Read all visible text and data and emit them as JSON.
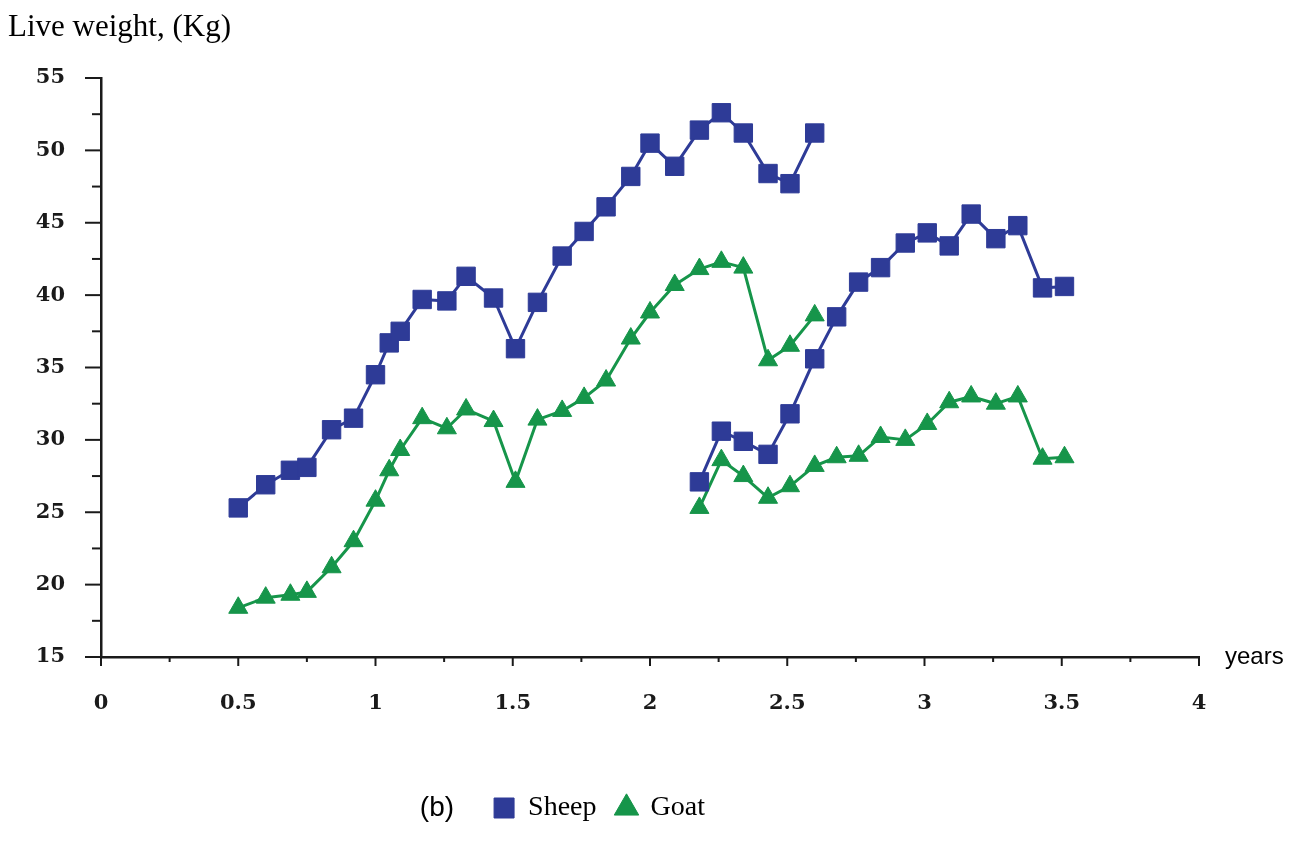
{
  "chart_data": {
    "type": "line",
    "xlabel": "years",
    "ylabel": "Live weight, (Kg)",
    "annotations": [
      "(b)"
    ],
    "xlim": [
      0,
      4
    ],
    "xticks": [
      0,
      {
        "value": 0.25,
        "label": null
      },
      0.5,
      {
        "value": 0.75,
        "label": null
      },
      1,
      {
        "value": 1.25,
        "label": null
      },
      1.5,
      {
        "value": 1.75,
        "label": null
      },
      2,
      {
        "value": 2.25,
        "label": null
      },
      2.5,
      {
        "value": 2.75,
        "label": null
      },
      3,
      {
        "value": 3.25,
        "label": null
      },
      3.5,
      {
        "value": 3.75,
        "label": null
      },
      4
    ],
    "ylim": [
      15,
      55
    ],
    "yticks": [
      15,
      {
        "value": 17.5,
        "label": null
      },
      20,
      {
        "value": 22.5,
        "label": null
      },
      25,
      {
        "value": 27.5,
        "label": null
      },
      30,
      {
        "value": 32.5,
        "label": null
      },
      35,
      {
        "value": 37.5,
        "label": null
      },
      40,
      {
        "value": 42.5,
        "label": null
      },
      45,
      {
        "value": 47.5,
        "label": null
      },
      50,
      {
        "value": 52.5,
        "label": null
      },
      55
    ],
    "legend": "bottom",
    "series": [
      {
        "name": "Sheep",
        "color": "#2e3b97",
        "marker": "square",
        "x": [
          0.5,
          0.6,
          0.69,
          0.75,
          0.84,
          0.92,
          1.0,
          1.05,
          1.09,
          1.17,
          1.26,
          1.33,
          1.43,
          1.51,
          1.59,
          1.68,
          1.76,
          1.84,
          1.93,
          2.0,
          2.09,
          2.18,
          2.26,
          2.34,
          2.43,
          2.51,
          2.6
        ],
        "values": [
          25.3,
          26.9,
          27.9,
          28.1,
          30.7,
          31.5,
          34.5,
          36.7,
          37.5,
          39.7,
          39.6,
          41.3,
          39.8,
          36.3,
          39.5,
          42.7,
          44.4,
          46.1,
          48.2,
          50.5,
          48.9,
          51.4,
          52.6,
          51.2,
          48.4,
          47.7,
          51.2
        ]
      },
      {
        "name": "Goat",
        "color": "#16954a",
        "marker": "triangle",
        "x": [
          0.5,
          0.6,
          0.69,
          0.75,
          0.84,
          0.92,
          1.0,
          1.05,
          1.09,
          1.17,
          1.26,
          1.33,
          1.43,
          1.51,
          1.59,
          1.68,
          1.76,
          1.84,
          1.93,
          2.0,
          2.09,
          2.18,
          2.26,
          2.34,
          2.43,
          2.51,
          2.6
        ],
        "values": [
          18.4,
          19.1,
          19.3,
          19.5,
          21.2,
          23.0,
          25.8,
          27.9,
          29.3,
          31.5,
          30.8,
          32.1,
          31.3,
          27.1,
          31.4,
          32.0,
          32.9,
          34.1,
          37.0,
          38.8,
          40.7,
          41.8,
          42.3,
          41.9,
          35.5,
          36.5,
          38.6
        ]
      },
      {
        "color": "#2e3b97",
        "marker": "square",
        "x": [
          2.18,
          2.26,
          2.34,
          2.43,
          2.51,
          2.6,
          2.68,
          2.76,
          2.84,
          2.93,
          3.01,
          3.09,
          3.17,
          3.26,
          3.34,
          3.43,
          3.51
        ],
        "values": [
          27.1,
          30.6,
          29.9,
          29.0,
          31.8,
          35.6,
          38.5,
          40.9,
          41.9,
          43.6,
          44.3,
          43.4,
          45.6,
          43.9,
          44.8,
          40.5,
          40.6
        ]
      },
      {
        "color": "#16954a",
        "marker": "triangle",
        "x": [
          2.18,
          2.26,
          2.34,
          2.43,
          2.51,
          2.6,
          2.68,
          2.76,
          2.84,
          2.93,
          3.01,
          3.09,
          3.17,
          3.26,
          3.34,
          3.43,
          3.51
        ],
        "values": [
          25.3,
          28.6,
          27.5,
          26.0,
          26.8,
          28.2,
          28.8,
          28.9,
          30.2,
          30.0,
          31.1,
          32.6,
          33.0,
          32.5,
          33.0,
          28.7,
          28.8
        ]
      }
    ]
  }
}
